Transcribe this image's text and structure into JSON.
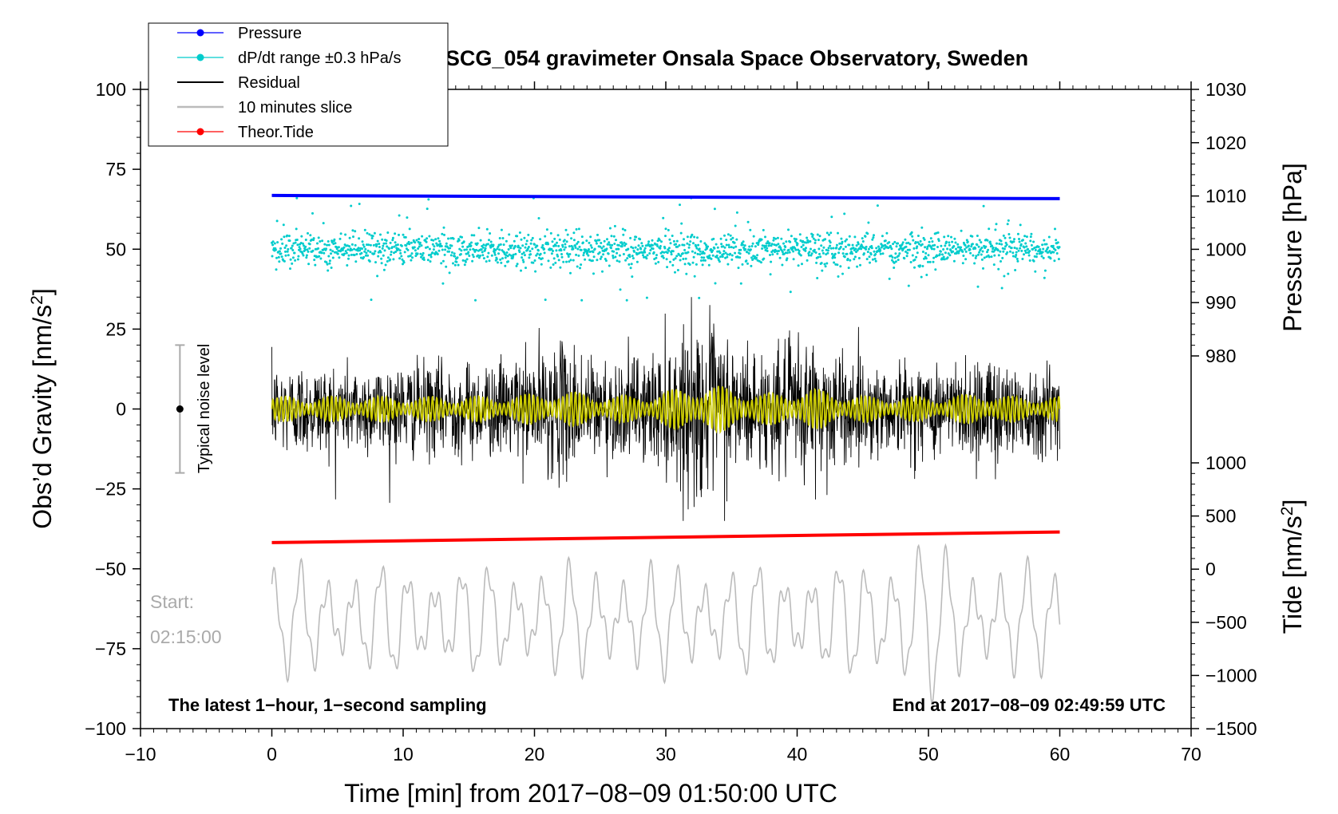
{
  "chart_data": {
    "type": "line",
    "title": "SCG_054 gravimeter Onsala Space Observatory, Sweden",
    "xlabel": "Time [min] from 2017−08−09 01:50:00 UTC",
    "ylabel_left": "Obs’d Gravity [nm/s²]",
    "ylabel_pressure": "Pressure [hPa]",
    "ylabel_tide": "Tide [nm/s²]",
    "xlim": [
      -10,
      70
    ],
    "ylim": [
      -100,
      100
    ],
    "pressure_lim": [
      970,
      1030
    ],
    "tide_lim": [
      -1500,
      1000
    ],
    "x_ticks": [
      "−10",
      "0",
      "10",
      "20",
      "30",
      "40",
      "50",
      "60",
      "70"
    ],
    "y_ticks": [
      "100",
      "75",
      "50",
      "25",
      "0",
      "−25",
      "−50",
      "−75",
      "−100"
    ],
    "pressure_ticks": [
      "1030",
      "1020",
      "1010",
      "1000",
      "990",
      "980"
    ],
    "tide_ticks": [
      "1000",
      "500",
      "0",
      "−500",
      "−1000",
      "−1500"
    ],
    "legend": [
      {
        "label": "Pressure",
        "color": "#0000ff",
        "marker": true
      },
      {
        "label": "dP/dt range ±0.3 hPa/s",
        "color": "#00cccc",
        "marker": true
      },
      {
        "label": "Residual",
        "color": "#000000",
        "marker": false
      },
      {
        "label": "10 minutes slice",
        "color": "#bbbbbb",
        "marker": false
      },
      {
        "label": "Theor.Tide",
        "color": "#ff0000",
        "marker": true
      }
    ],
    "noise_label": "Typical noise level",
    "noise_bar": {
      "x": -7,
      "center": 0,
      "low": -20,
      "high": 20
    },
    "start_label": "Start:",
    "start_time": "02:15:00",
    "footer_left": "The latest 1−hour, 1−second sampling",
    "footer_right": "End at 2017−08−09 02:49:59 UTC",
    "series": [
      {
        "name": "Pressure",
        "axis": "pressure",
        "color": "#0000ff",
        "x": [
          0,
          10,
          20,
          30,
          40,
          50,
          60
        ],
        "values": [
          1010.1,
          1010.0,
          1009.9,
          1009.8,
          1009.7,
          1009.6,
          1009.5
        ]
      },
      {
        "name": "dP/dt range ±0.3 hPa/s",
        "axis": "gravity",
        "color": "#00cccc",
        "x_range": [
          0,
          60
        ],
        "center": 50,
        "typical_spread": 2.5,
        "max_spread": 16
      },
      {
        "name": "Residual",
        "axis": "gravity",
        "color": "#000000",
        "x_range": [
          0,
          60
        ],
        "center": 0,
        "typical_amplitude": 12,
        "max_amplitude": 35
      },
      {
        "name": "Residual (filtered)",
        "axis": "gravity",
        "color": "#cccc00",
        "x_range": [
          0,
          60
        ],
        "center": 0,
        "typical_amplitude": 4,
        "max_amplitude": 11
      },
      {
        "name": "10 minutes slice",
        "axis": "gravity",
        "color": "#bbbbbb",
        "x_range": [
          0,
          60
        ],
        "center": -66,
        "typical_amplitude": 16,
        "max_amplitude": 30
      },
      {
        "name": "Theor.Tide",
        "axis": "tide",
        "color": "#ff0000",
        "x": [
          0,
          60
        ],
        "values": [
          250,
          350
        ]
      }
    ]
  }
}
